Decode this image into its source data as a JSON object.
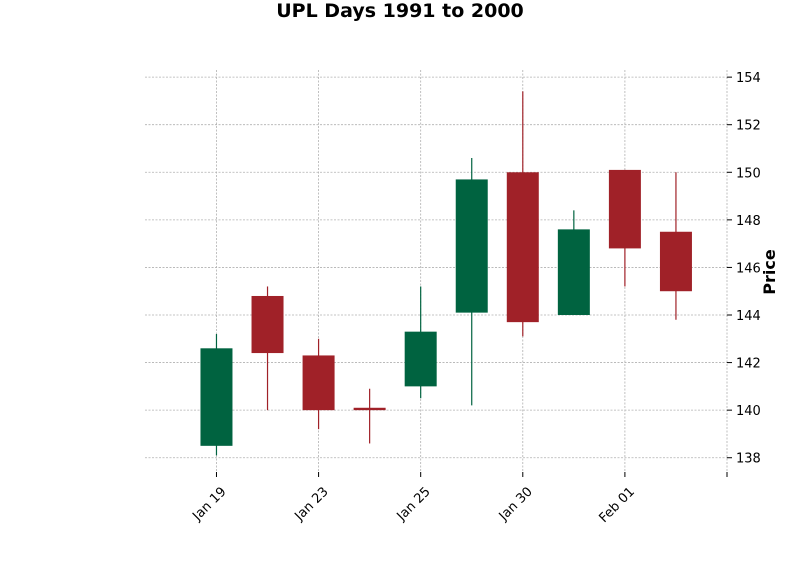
{
  "chart_data": {
    "type": "candlestick",
    "title": "UPL Days 1991 to 2000",
    "ylabel": "Price",
    "xlabel": "",
    "ylim": [
      137.4,
      154.3
    ],
    "yticks": [
      138,
      140,
      142,
      144,
      146,
      148,
      150,
      152,
      154
    ],
    "xticks": [
      {
        "index": 0,
        "label": "Jan 19"
      },
      {
        "index": 2,
        "label": "Jan 23"
      },
      {
        "index": 4,
        "label": "Jan 25"
      },
      {
        "index": 6,
        "label": "Jan 30"
      },
      {
        "index": 8,
        "label": "Feb 01"
      },
      {
        "index": 10,
        "label": ""
      }
    ],
    "x_range": [
      -1.4,
      10.0
    ],
    "grid": true,
    "colors": {
      "up": "#006340",
      "down": "#a02128"
    },
    "candles": [
      {
        "open": 138.5,
        "high": 143.2,
        "low": 138.1,
        "close": 142.6
      },
      {
        "open": 144.8,
        "high": 145.2,
        "low": 140.0,
        "close": 142.4
      },
      {
        "open": 142.3,
        "high": 143.0,
        "low": 139.2,
        "close": 140.0
      },
      {
        "open": 140.1,
        "high": 140.9,
        "low": 138.6,
        "close": 140.0
      },
      {
        "open": 141.0,
        "high": 145.2,
        "low": 140.5,
        "close": 143.3
      },
      {
        "open": 144.1,
        "high": 150.6,
        "low": 140.2,
        "close": 149.7
      },
      {
        "open": 150.0,
        "high": 153.4,
        "low": 143.1,
        "close": 143.7
      },
      {
        "open": 144.0,
        "high": 148.4,
        "low": 144.0,
        "close": 147.6
      },
      {
        "open": 150.1,
        "high": 150.1,
        "low": 145.2,
        "close": 146.8
      },
      {
        "open": 147.5,
        "high": 150.0,
        "low": 143.8,
        "close": 145.0
      }
    ]
  }
}
